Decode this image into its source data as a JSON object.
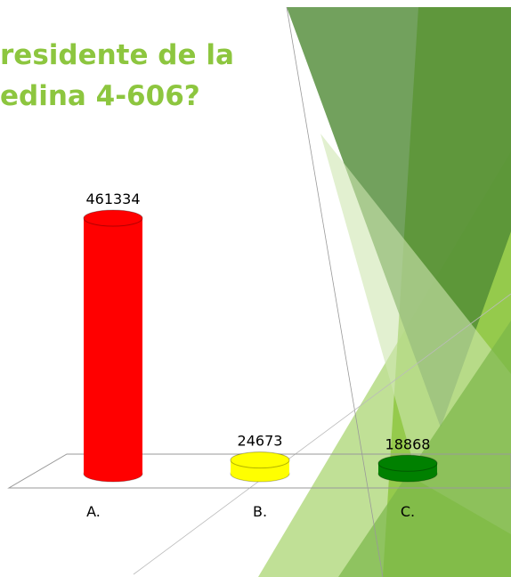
{
  "chart_data": {
    "type": "bar",
    "title": [
      "residente de la",
      "edina 4-606?"
    ],
    "categories": [
      "A.",
      "B.",
      "C."
    ],
    "values": [
      461334,
      24673,
      18868
    ],
    "colors": [
      "#ff0000",
      "#ffff00",
      "#008000"
    ]
  }
}
